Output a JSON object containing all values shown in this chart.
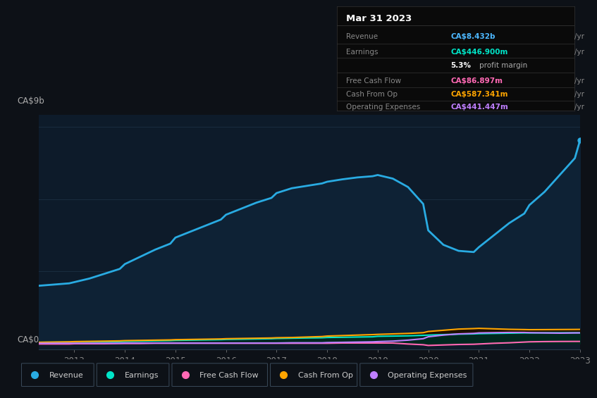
{
  "bg_color": "#0d1117",
  "plot_bg_color": "#0d1b2a",
  "title_box": {
    "date": "Mar 31 2023",
    "rows": [
      {
        "label": "Revenue",
        "value": "CA$8.432b",
        "value_color": "#4db8ff"
      },
      {
        "label": "Earnings",
        "value": "CA$446.900m",
        "value_color": "#00e5c8"
      },
      {
        "label": "",
        "value": "5.3% profit margin",
        "value_color": "#ffffff"
      },
      {
        "label": "Free Cash Flow",
        "value": "CA$86.897m",
        "value_color": "#ff69b4"
      },
      {
        "label": "Cash From Op",
        "value": "CA$587.341m",
        "value_color": "#ffa500"
      },
      {
        "label": "Operating Expenses",
        "value": "CA$441.447m",
        "value_color": "#bf7fff"
      }
    ]
  },
  "ylabel_top": "CA$9b",
  "ylabel_bottom": "CA$0",
  "x_labels": [
    "2013",
    "2014",
    "2015",
    "2016",
    "2017",
    "2018",
    "2019",
    "2020",
    "2021",
    "2022",
    "2023"
  ],
  "x_ticks": [
    2013,
    2014,
    2015,
    2016,
    2017,
    2018,
    2019,
    2020,
    2021,
    2022,
    2023
  ],
  "years": [
    2012.3,
    2012.6,
    2012.9,
    2013.0,
    2013.3,
    2013.6,
    2013.9,
    2014.0,
    2014.3,
    2014.6,
    2014.9,
    2015.0,
    2015.3,
    2015.6,
    2015.9,
    2016.0,
    2016.3,
    2016.6,
    2016.9,
    2017.0,
    2017.3,
    2017.6,
    2017.9,
    2018.0,
    2018.3,
    2018.6,
    2018.9,
    2019.0,
    2019.3,
    2019.6,
    2019.9,
    2020.0,
    2020.3,
    2020.6,
    2020.9,
    2021.0,
    2021.3,
    2021.6,
    2021.9,
    2022.0,
    2022.3,
    2022.6,
    2022.9,
    2023.0
  ],
  "revenue": [
    2.4,
    2.45,
    2.5,
    2.55,
    2.7,
    2.9,
    3.1,
    3.3,
    3.6,
    3.9,
    4.15,
    4.4,
    4.65,
    4.9,
    5.15,
    5.35,
    5.6,
    5.85,
    6.05,
    6.25,
    6.45,
    6.55,
    6.65,
    6.72,
    6.82,
    6.9,
    6.95,
    7.0,
    6.85,
    6.5,
    5.8,
    4.7,
    4.1,
    3.85,
    3.8,
    4.0,
    4.5,
    5.0,
    5.4,
    5.75,
    6.3,
    7.0,
    7.7,
    8.432
  ],
  "earnings": [
    0.05,
    0.055,
    0.06,
    0.065,
    0.07,
    0.075,
    0.08,
    0.09,
    0.1,
    0.11,
    0.12,
    0.13,
    0.14,
    0.15,
    0.16,
    0.17,
    0.18,
    0.19,
    0.2,
    0.21,
    0.22,
    0.23,
    0.24,
    0.25,
    0.26,
    0.27,
    0.28,
    0.3,
    0.31,
    0.32,
    0.34,
    0.35,
    0.37,
    0.39,
    0.4,
    0.41,
    0.42,
    0.43,
    0.44,
    0.44,
    0.445,
    0.447,
    0.447,
    0.4469
  ],
  "free_cash_flow": [
    -0.02,
    -0.02,
    -0.02,
    -0.01,
    -0.01,
    -0.01,
    0.0,
    0.0,
    0.0,
    0.01,
    0.01,
    0.01,
    0.01,
    0.01,
    0.01,
    0.01,
    0.01,
    0.01,
    0.01,
    0.01,
    0.01,
    0.01,
    0.01,
    0.01,
    0.02,
    0.02,
    0.02,
    0.02,
    0.02,
    -0.02,
    -0.05,
    -0.08,
    -0.06,
    -0.04,
    -0.03,
    -0.02,
    0.01,
    0.03,
    0.06,
    0.07,
    0.08,
    0.085,
    0.087,
    0.0869
  ],
  "cash_from_op": [
    0.05,
    0.06,
    0.07,
    0.08,
    0.09,
    0.1,
    0.11,
    0.12,
    0.13,
    0.14,
    0.15,
    0.16,
    0.17,
    0.18,
    0.19,
    0.2,
    0.21,
    0.22,
    0.23,
    0.24,
    0.25,
    0.27,
    0.29,
    0.31,
    0.33,
    0.35,
    0.37,
    0.38,
    0.4,
    0.42,
    0.45,
    0.5,
    0.55,
    0.6,
    0.62,
    0.63,
    0.61,
    0.59,
    0.58,
    0.575,
    0.578,
    0.582,
    0.585,
    0.587
  ],
  "op_expenses": [
    0.01,
    0.01,
    0.01,
    0.01,
    0.01,
    0.01,
    0.01,
    0.02,
    0.02,
    0.02,
    0.02,
    0.02,
    0.02,
    0.02,
    0.02,
    0.02,
    0.02,
    0.02,
    0.02,
    0.02,
    0.03,
    0.03,
    0.03,
    0.04,
    0.05,
    0.06,
    0.07,
    0.08,
    0.1,
    0.14,
    0.2,
    0.28,
    0.35,
    0.4,
    0.42,
    0.44,
    0.45,
    0.46,
    0.46,
    0.45,
    0.44,
    0.43,
    0.44,
    0.441
  ],
  "revenue_color": "#29abe2",
  "revenue_fill": "#102a40",
  "earnings_color": "#00e5c8",
  "fcf_color": "#ff69b4",
  "cashop_color": "#ffa500",
  "opex_color": "#bf7fff",
  "legend_items": [
    {
      "label": "Revenue",
      "color": "#29abe2"
    },
    {
      "label": "Earnings",
      "color": "#00e5c8"
    },
    {
      "label": "Free Cash Flow",
      "color": "#ff69b4"
    },
    {
      "label": "Cash From Op",
      "color": "#ffa500"
    },
    {
      "label": "Operating Expenses",
      "color": "#bf7fff"
    }
  ]
}
